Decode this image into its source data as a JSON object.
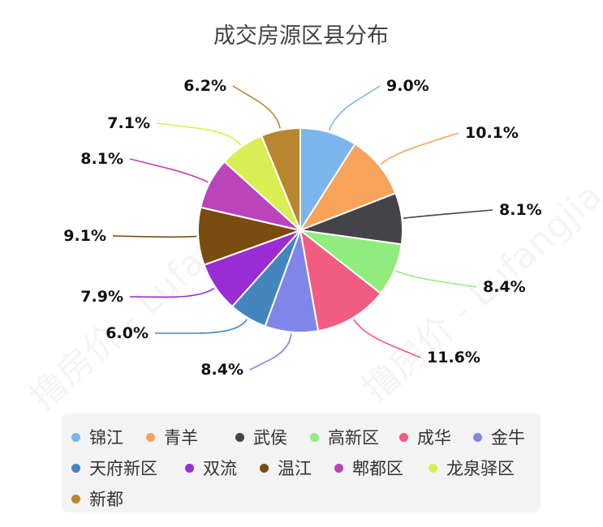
{
  "watermark": "撸房价 - Lufangjia",
  "chart_data": {
    "type": "pie",
    "title": "成交房源区县分布",
    "legend_position": "bottom",
    "start_angle_deg": 0,
    "direction": "clockwise",
    "slices": [
      {
        "name": "锦江",
        "value": 9.0,
        "label": "9.0%",
        "color": "#7cb5ec"
      },
      {
        "name": "青羊",
        "value": 10.1,
        "label": "10.1%",
        "color": "#f7a35c"
      },
      {
        "name": "武侯",
        "value": 8.1,
        "label": "8.1%",
        "color": "#434348"
      },
      {
        "name": "高新区",
        "value": 8.4,
        "label": "8.4%",
        "color": "#90ed7d"
      },
      {
        "name": "成华",
        "value": 11.6,
        "label": "11.6%",
        "color": "#f15c80"
      },
      {
        "name": "金牛",
        "value": 8.4,
        "label": "8.4%",
        "color": "#8085e9"
      },
      {
        "name": "天府新区",
        "value": 6.0,
        "label": "6.0%",
        "color": "#4385bf"
      },
      {
        "name": "双流",
        "value": 7.9,
        "label": "7.9%",
        "color": "#9b2bd2"
      },
      {
        "name": "温江",
        "value": 9.1,
        "label": "9.1%",
        "color": "#7a4c10"
      },
      {
        "name": "郫都区",
        "value": 8.1,
        "label": "8.1%",
        "color": "#bb44bb"
      },
      {
        "name": "龙泉驿区",
        "value": 7.1,
        "label": "7.1%",
        "color": "#d8ee52"
      },
      {
        "name": "新都",
        "value": 6.2,
        "label": "6.2%",
        "color": "#b8862f"
      }
    ]
  }
}
